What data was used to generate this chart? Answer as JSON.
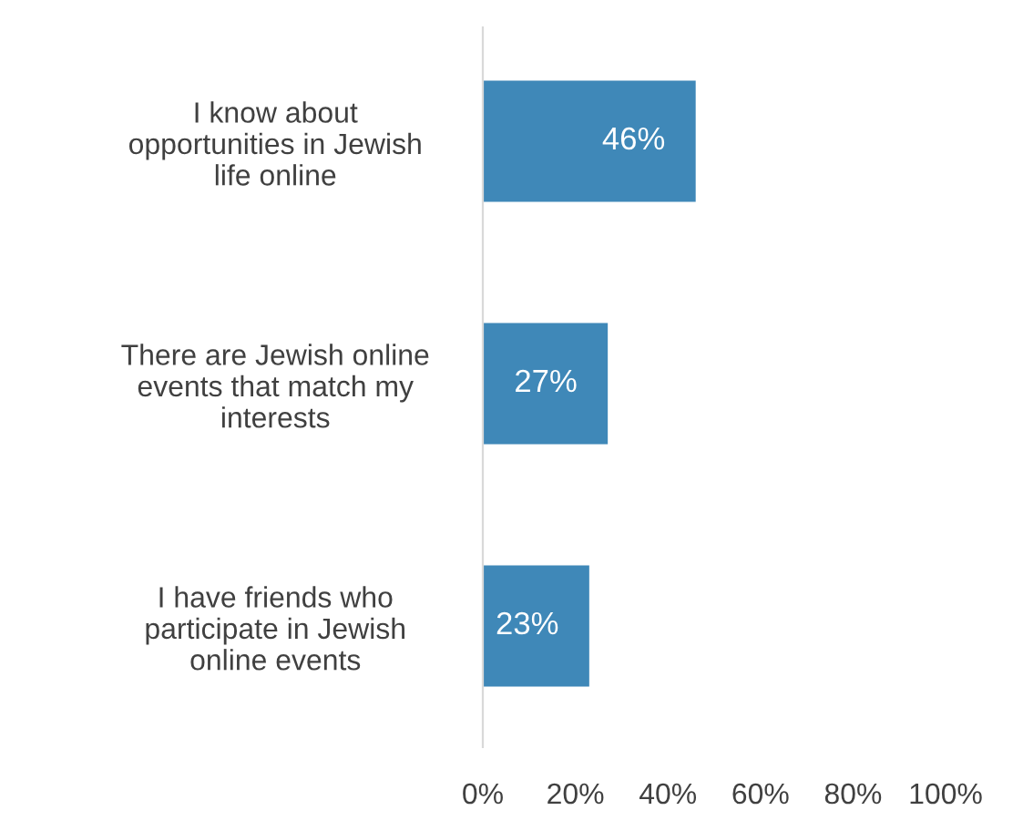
{
  "chart_data": {
    "type": "bar",
    "orientation": "horizontal",
    "categories": [
      "I know about\nopportunities in Jewish\nlife online",
      "There are Jewish online\nevents that match my\ninterests",
      "I have friends who\nparticipate in Jewish\nonline events"
    ],
    "values": [
      46,
      27,
      23
    ],
    "color": "#3f88b8",
    "value_labels": [
      "46%",
      "27%",
      "23%"
    ],
    "xlim": [
      0,
      100
    ],
    "xticks": [
      {
        "value": 0,
        "label": "0%"
      },
      {
        "value": 20,
        "label": "20%"
      },
      {
        "value": 40,
        "label": "40%"
      },
      {
        "value": 60,
        "label": "60%"
      },
      {
        "value": 80,
        "label": "80%"
      },
      {
        "value": 100,
        "label": "100%"
      }
    ],
    "grid": false,
    "legend": false
  }
}
